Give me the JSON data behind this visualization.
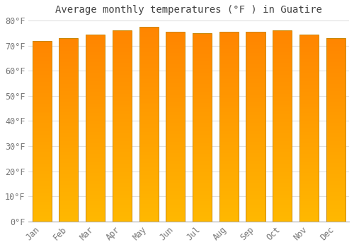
{
  "title": "Average monthly temperatures (°F ) in Guatire",
  "months": [
    "Jan",
    "Feb",
    "Mar",
    "Apr",
    "May",
    "Jun",
    "Jul",
    "Aug",
    "Sep",
    "Oct",
    "Nov",
    "Dec"
  ],
  "values": [
    72,
    73,
    74.5,
    76,
    77.5,
    75.5,
    75,
    75.5,
    75.5,
    76,
    74.5,
    73
  ],
  "bar_color": "#FFA500",
  "bar_color_top": "#FFB700",
  "bar_color_bottom": "#FFD000",
  "bar_edge_color": "#C8890A",
  "background_color": "#FFFFFF",
  "grid_color": "#E0E0E0",
  "text_color": "#777777",
  "title_color": "#444444",
  "ylim": [
    0,
    80
  ],
  "ytick_step": 10,
  "title_fontsize": 10,
  "tick_fontsize": 8.5,
  "font_family": "monospace"
}
